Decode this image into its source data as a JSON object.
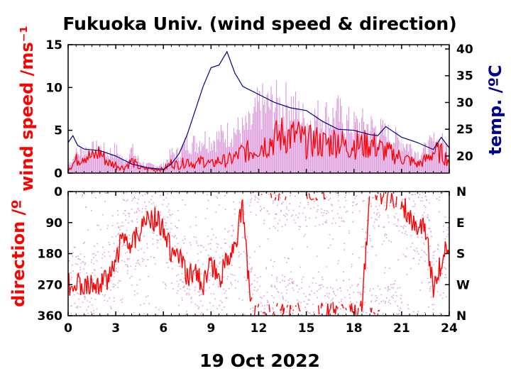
{
  "title": "Fukuoka Univ. (wind speed & direction)",
  "colors": {
    "wind": "#ff0000",
    "gust": "#dda0dd",
    "temp": "#00008b",
    "axis": "#000000"
  },
  "chart_data": [
    {
      "type": "line",
      "name": "top",
      "xlabel": "19 Oct 2022",
      "xlim": [
        0,
        24
      ],
      "x_ticks": [
        "0",
        "3",
        "6",
        "9",
        "12",
        "15",
        "18",
        "21",
        "24"
      ],
      "ylabel": "wind speed /ms⁻¹",
      "ylim": [
        0,
        15
      ],
      "y_ticks": [
        "0",
        "5",
        "10",
        "15"
      ],
      "y2label": "temp. /ºC",
      "y2lim": [
        16.8,
        40.8
      ],
      "y2_ticks": [
        "20",
        "25",
        "30",
        "35",
        "40"
      ],
      "series": [
        {
          "key": "wind",
          "x": [
            0,
            0.5,
            1,
            1.5,
            2,
            2.5,
            3,
            3.5,
            4,
            4.5,
            5,
            5.5,
            6,
            6.5,
            7,
            7.5,
            8,
            8.5,
            9,
            9.5,
            10,
            10.5,
            11,
            11.5,
            12,
            12.5,
            13,
            13.5,
            14,
            14.5,
            15,
            15.5,
            16,
            16.5,
            17,
            17.5,
            18,
            18.5,
            19,
            19.5,
            20,
            20.5,
            21,
            21.5,
            22,
            22.5,
            23,
            23.5,
            24
          ],
          "y": [
            0.5,
            1.5,
            2.2,
            1.8,
            2.5,
            1.2,
            1.0,
            0.6,
            1.4,
            0.6,
            0.5,
            0.5,
            0.4,
            1.2,
            0.9,
            1.5,
            1.0,
            1.5,
            1.0,
            1.5,
            1.4,
            1.8,
            2.5,
            2.5,
            3.2,
            3.5,
            4.0,
            4.5,
            4.3,
            4.2,
            3.5,
            3.8,
            3.4,
            3.5,
            4.0,
            3.0,
            3.5,
            3.2,
            3.5,
            3.0,
            2.5,
            2.2,
            1.8,
            1.5,
            1.0,
            1.5,
            2.5,
            2.3,
            1.5
          ]
        },
        {
          "key": "gust",
          "x": [
            0,
            0.5,
            1,
            1.5,
            2,
            2.5,
            3,
            3.5,
            4,
            4.5,
            5,
            5.5,
            6,
            6.5,
            7,
            7.5,
            8,
            8.5,
            9,
            9.5,
            10,
            10.5,
            11,
            11.5,
            12,
            12.5,
            13,
            13.5,
            14,
            14.5,
            15,
            15.5,
            16,
            16.5,
            17,
            17.5,
            18,
            18.5,
            19,
            19.5,
            20,
            20.5,
            21,
            21.5,
            22,
            22.5,
            23,
            23.5,
            24
          ],
          "y": [
            1.0,
            2.5,
            3.0,
            3.0,
            3.2,
            2.5,
            3.0,
            1.5,
            3.0,
            1.5,
            1.0,
            1.0,
            1.0,
            2.5,
            2.5,
            4.0,
            3.8,
            4.5,
            4.2,
            4.6,
            5.0,
            5.5,
            5.5,
            6.0,
            8.5,
            8.5,
            8.8,
            8.5,
            9.0,
            7.5,
            6.5,
            7.0,
            7.5,
            7.0,
            7.5,
            6.5,
            6.0,
            6.2,
            6.0,
            5.5,
            5.0,
            4.5,
            4.0,
            3.5,
            2.5,
            3.0,
            4.0,
            4.0,
            3.0
          ]
        },
        {
          "key": "temp",
          "x": [
            0,
            0.3,
            0.6,
            1,
            2,
            3,
            4,
            5,
            6,
            6.5,
            7,
            7.5,
            8,
            8.5,
            9,
            9.5,
            10,
            10.5,
            11,
            12,
            13,
            14,
            15,
            16,
            17,
            18,
            19,
            19.5,
            20,
            21,
            22,
            23,
            23.5,
            24
          ],
          "y": [
            22.5,
            23.8,
            22.0,
            21.3,
            21.0,
            20.0,
            18.5,
            17.8,
            17.5,
            18.5,
            20.5,
            24.0,
            28.5,
            33.0,
            36.5,
            37.0,
            39.5,
            35.5,
            33.0,
            31.5,
            30.0,
            29.0,
            28.5,
            26.5,
            25.0,
            24.8,
            24.0,
            23.8,
            25.5,
            23.5,
            22.5,
            21.2,
            23.5,
            21.5
          ]
        }
      ]
    },
    {
      "type": "scatter",
      "name": "bottom",
      "xlim": [
        0,
        24
      ],
      "x_ticks": [
        "0",
        "3",
        "6",
        "9",
        "12",
        "15",
        "18",
        "21",
        "24"
      ],
      "ylabel": "direction /º",
      "ylim": [
        0,
        360
      ],
      "y_ticks": [
        "0",
        "90",
        "180",
        "270",
        "360"
      ],
      "y2_ticks": [
        "N",
        "E",
        "S",
        "W",
        "N"
      ],
      "series": [
        {
          "key": "direction",
          "x": [
            0,
            0.5,
            1,
            1.5,
            2,
            2.5,
            3,
            3.5,
            4,
            4.5,
            5,
            5.5,
            6,
            6.5,
            7,
            7.5,
            8,
            8.5,
            9,
            9.5,
            10,
            10.5,
            11,
            11.5,
            12,
            12.5,
            13,
            13.5,
            14,
            14.5,
            15,
            15.5,
            16,
            16.5,
            17,
            17.5,
            18,
            18.5,
            19,
            19.5,
            20,
            20.5,
            21,
            21.5,
            22,
            22.5,
            23,
            23.5,
            24
          ],
          "y": [
            270,
            260,
            270,
            265,
            270,
            255,
            200,
            120,
            150,
            110,
            90,
            80,
            100,
            180,
            190,
            250,
            230,
            270,
            210,
            260,
            200,
            150,
            50,
            330,
            350,
            355,
            355,
            350,
            355,
            352,
            350,
            355,
            355,
            350,
            352,
            355,
            355,
            350,
            5,
            10,
            20,
            15,
            30,
            80,
            95,
            100,
            280,
            200,
            150
          ]
        }
      ]
    }
  ]
}
